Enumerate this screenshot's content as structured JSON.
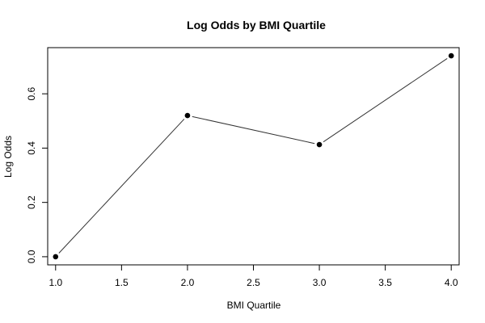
{
  "chart_data": {
    "type": "line",
    "title": "Log Odds by BMI Quartile",
    "xlabel": "BMI Quartile",
    "ylabel": "Log Odds",
    "x": [
      1.0,
      2.0,
      3.0,
      4.0
    ],
    "y": [
      0.0,
      0.52,
      0.413,
      0.74
    ],
    "xlim": [
      0.94,
      4.06
    ],
    "ylim": [
      -0.03,
      0.77
    ],
    "xticks": [
      1.0,
      1.5,
      2.0,
      2.5,
      3.0,
      3.5,
      4.0
    ],
    "xtick_labels": [
      "1.0",
      "1.5",
      "2.0",
      "2.5",
      "3.0",
      "3.5",
      "4.0"
    ],
    "yticks": [
      0.0,
      0.2,
      0.4,
      0.6
    ],
    "ytick_labels": [
      "0.0",
      "0.2",
      "0.4",
      "0.6"
    ],
    "grid": false,
    "colors": {
      "line": "#333333",
      "point": "#000000",
      "axis": "#000000"
    }
  }
}
